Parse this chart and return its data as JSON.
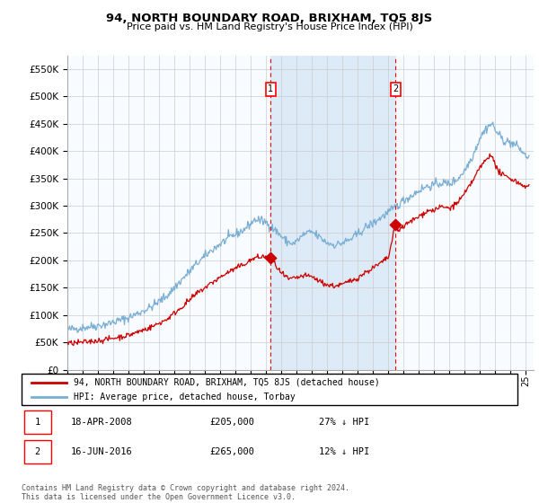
{
  "title": "94, NORTH BOUNDARY ROAD, BRIXHAM, TQ5 8JS",
  "subtitle": "Price paid vs. HM Land Registry's House Price Index (HPI)",
  "ylim": [
    0,
    575000
  ],
  "yticks": [
    0,
    50000,
    100000,
    150000,
    200000,
    250000,
    300000,
    350000,
    400000,
    450000,
    500000,
    550000
  ],
  "xlim_start": 1995.0,
  "xlim_end": 2025.5,
  "hpi_color": "#7aaed4",
  "price_color": "#cc0000",
  "transaction1_date": 2008.29,
  "transaction1_price": 205000,
  "transaction1_label": "1",
  "transaction2_date": 2016.46,
  "transaction2_price": 265000,
  "transaction2_label": "2",
  "legend_line1": "94, NORTH BOUNDARY ROAD, BRIXHAM, TQ5 8JS (detached house)",
  "legend_line2": "HPI: Average price, detached house, Torbay",
  "table_row1": [
    "1",
    "18-APR-2008",
    "£205,000",
    "27% ↓ HPI"
  ],
  "table_row2": [
    "2",
    "16-JUN-2016",
    "£265,000",
    "12% ↓ HPI"
  ],
  "footer": "Contains HM Land Registry data © Crown copyright and database right 2024.\nThis data is licensed under the Open Government Licence v3.0.",
  "background_color": "#ffffff",
  "grid_color": "#cccccc",
  "shade_color": "#ddeaf7",
  "chart_bg": "#f8fbff"
}
